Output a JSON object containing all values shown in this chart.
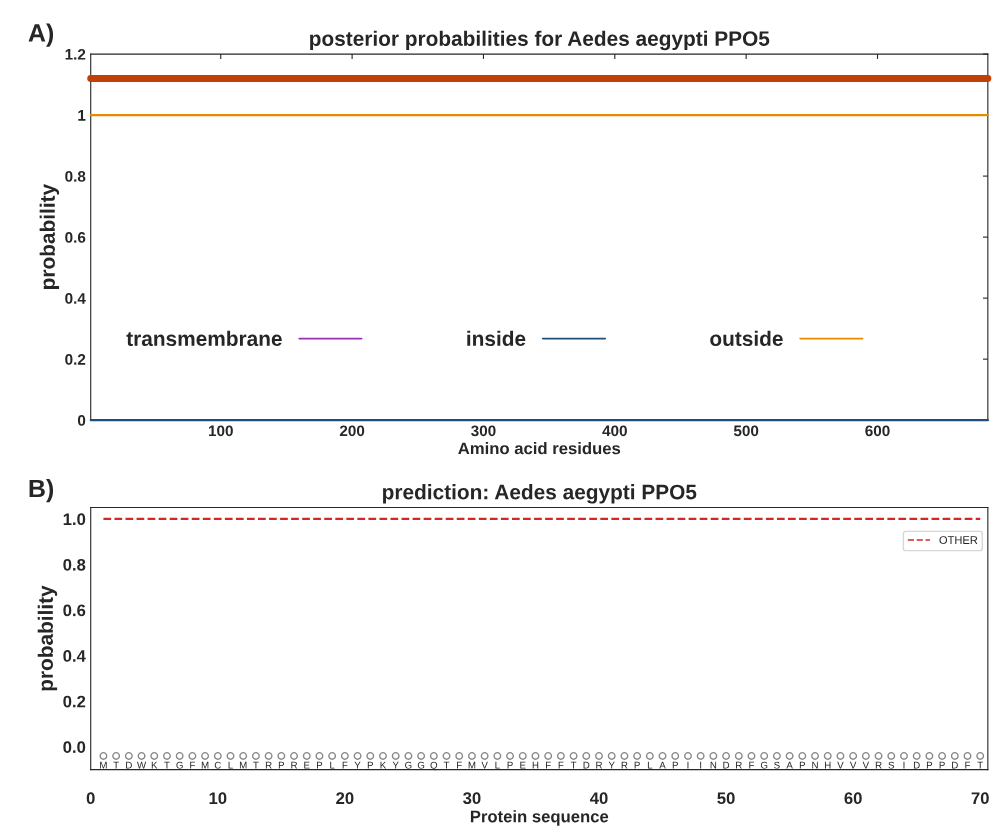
{
  "chart_data": [
    {
      "type": "line",
      "title": "posterior probabilities for Aedes aegypti PPO5",
      "xlabel": "Amino acid residues",
      "ylabel": "probability",
      "annotations": [
        "A)"
      ],
      "xlim": [
        1,
        684
      ],
      "xticks": [
        100,
        200,
        300,
        400,
        500,
        600
      ],
      "ylim": [
        0,
        1.2
      ],
      "yticks": [
        0,
        0.2,
        0.4,
        0.6,
        0.8,
        1,
        1.2
      ],
      "legend": "lower center",
      "grid": false,
      "series": [
        {
          "color": "#c0400a",
          "x": [
            1,
            684
          ],
          "values": [
            1.12,
            1.12
          ]
        },
        {
          "name": "transmembrane",
          "color": "#9b30b0"
        },
        {
          "name": "inside",
          "color": "#1f4e79",
          "x": [
            1,
            684
          ],
          "values": [
            0,
            0
          ]
        },
        {
          "name": "outside",
          "color": "#e88a00",
          "x": [
            1,
            684
          ],
          "values": [
            1,
            1
          ]
        }
      ]
    },
    {
      "type": "line",
      "title": "prediction: Aedes aegypti PPO5",
      "xlabel": "Protein sequence",
      "ylabel": "probability",
      "annotations": [
        "B)"
      ],
      "xlim": [
        0,
        70.6
      ],
      "xticks": [
        0,
        10,
        20,
        30,
        40,
        50,
        60,
        70
      ],
      "ylim": [
        -0.1,
        1.05
      ],
      "yticks": [
        {
          "value": 0,
          "label": "0.0"
        },
        {
          "value": 0.2,
          "label": "0.2"
        },
        {
          "value": 0.4,
          "label": "0.4"
        },
        {
          "value": 0.6,
          "label": "0.6"
        },
        {
          "value": 0.8,
          "label": "0.8"
        },
        {
          "value": 1,
          "label": "1.0"
        }
      ],
      "legend": "top right",
      "grid": false,
      "series": [
        {
          "name": "OTHER",
          "color": "#d62728",
          "line_style": "dashed",
          "x": [
            1,
            2,
            3,
            4,
            5,
            6,
            7,
            8,
            9,
            10,
            11,
            12,
            13,
            14,
            15,
            16,
            17,
            18,
            19,
            20,
            21,
            22,
            23,
            24,
            25,
            26,
            27,
            28,
            29,
            30,
            31,
            32,
            33,
            34,
            35,
            36,
            37,
            38,
            39,
            40,
            41,
            42,
            43,
            44,
            45,
            46,
            47,
            48,
            49,
            50,
            51,
            52,
            53,
            54,
            55,
            56,
            57,
            58,
            59,
            60,
            61,
            62,
            63,
            64,
            65,
            66,
            67,
            68,
            69,
            70
          ],
          "values": [
            1,
            1,
            1,
            1,
            1,
            1,
            1,
            1,
            1,
            1,
            1,
            1,
            1,
            1,
            1,
            1,
            1,
            1,
            1,
            1,
            1,
            1,
            1,
            1,
            1,
            1,
            1,
            1,
            1,
            1,
            1,
            1,
            1,
            1,
            1,
            1,
            1,
            1,
            1,
            1,
            1,
            1,
            1,
            1,
            1,
            1,
            1,
            1,
            1,
            1,
            1,
            1,
            1,
            1,
            1,
            1,
            1,
            1,
            1,
            1,
            1,
            1,
            1,
            1,
            1,
            1,
            1,
            1,
            1,
            1
          ]
        },
        {
          "type": "scatter",
          "color": "#888888",
          "marker": "circle",
          "x": [
            1,
            2,
            3,
            4,
            5,
            6,
            7,
            8,
            9,
            10,
            11,
            12,
            13,
            14,
            15,
            16,
            17,
            18,
            19,
            20,
            21,
            22,
            23,
            24,
            25,
            26,
            27,
            28,
            29,
            30,
            31,
            32,
            33,
            34,
            35,
            36,
            37,
            38,
            39,
            40,
            41,
            42,
            43,
            44,
            45,
            46,
            47,
            48,
            49,
            50,
            51,
            52,
            53,
            54,
            55,
            56,
            57,
            58,
            59,
            60,
            61,
            62,
            63,
            64,
            65,
            66,
            67,
            68,
            69,
            70
          ],
          "values": [
            -0.04,
            -0.04,
            -0.04,
            -0.04,
            -0.04,
            -0.04,
            -0.04,
            -0.04,
            -0.04,
            -0.04,
            -0.04,
            -0.04,
            -0.04,
            -0.04,
            -0.04,
            -0.04,
            -0.04,
            -0.04,
            -0.04,
            -0.04,
            -0.04,
            -0.04,
            -0.04,
            -0.04,
            -0.04,
            -0.04,
            -0.04,
            -0.04,
            -0.04,
            -0.04,
            -0.04,
            -0.04,
            -0.04,
            -0.04,
            -0.04,
            -0.04,
            -0.04,
            -0.04,
            -0.04,
            -0.04,
            -0.04,
            -0.04,
            -0.04,
            -0.04,
            -0.04,
            -0.04,
            -0.04,
            -0.04,
            -0.04,
            -0.04,
            -0.04,
            -0.04,
            -0.04,
            -0.04,
            -0.04,
            -0.04,
            -0.04,
            -0.04,
            -0.04,
            -0.04,
            -0.04,
            -0.04,
            -0.04,
            -0.04,
            -0.04,
            -0.04,
            -0.04,
            -0.04,
            -0.04,
            -0.04
          ],
          "value_labels": [
            "M",
            "T",
            "D",
            "W",
            "K",
            "T",
            "G",
            "F",
            "M",
            "C",
            "L",
            "M",
            "T",
            "R",
            "P",
            "R",
            "E",
            "P",
            "L",
            "F",
            "Y",
            "P",
            "K",
            "Y",
            "G",
            "G",
            "Q",
            "T",
            "F",
            "M",
            "V",
            "L",
            "P",
            "E",
            "H",
            "F",
            "F",
            "T",
            "D",
            "R",
            "Y",
            "R",
            "P",
            "L",
            "A",
            "P",
            "I",
            "I",
            "N",
            "D",
            "R",
            "F",
            "G",
            "S",
            "A",
            "P",
            "N",
            "H",
            "V",
            "V",
            "V",
            "R",
            "S",
            "I",
            "D",
            "P",
            "P",
            "D",
            "F",
            "T"
          ]
        }
      ]
    }
  ]
}
